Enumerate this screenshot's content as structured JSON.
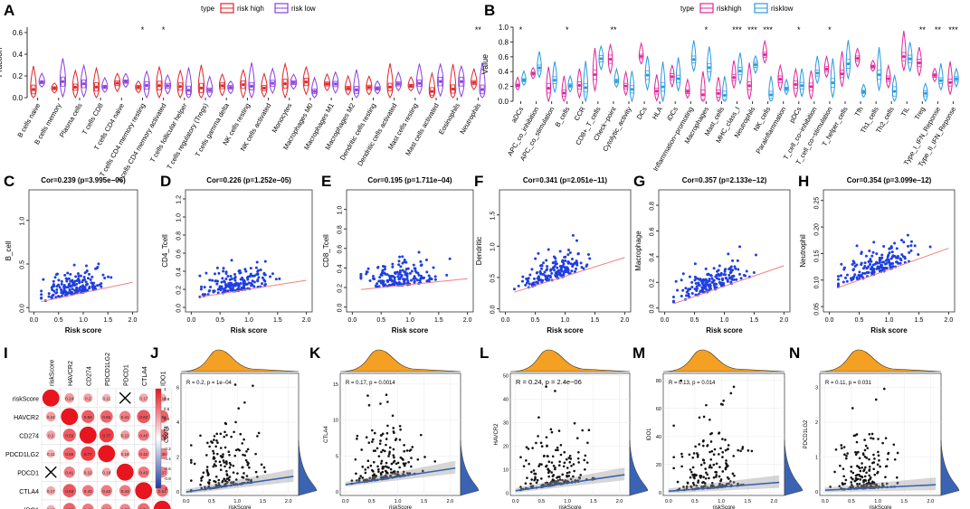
{
  "colors": {
    "risk_high_a": "#e0262b",
    "risk_low_a": "#8a3fe0",
    "risk_high_b": "#e0279a",
    "risk_low_b": "#2a9be0",
    "scatter_point": "#1f3fe0",
    "scatter_fit": "#f08080",
    "density_fill": "#f4a023",
    "density_side": "#3a63b3",
    "corr_red": "#e8141e",
    "corr_blue": "#1e3aa0"
  },
  "panels": {
    "A": {
      "letter": "A",
      "legend_title": "type",
      "legend_items": [
        "risk high",
        "risk low"
      ],
      "ylabel": "Fraction",
      "ylim": [
        0,
        0.65
      ],
      "yticks": [
        "0.0",
        "0.2",
        "0.4",
        "0.6"
      ],
      "categories": [
        "B cells naive",
        "B cells memory",
        "Plasma cells",
        "T cells CD8",
        "T cells CD4 naive",
        "T cells CD4 memory resting",
        "T cells CD4 memory activated",
        "T cells follicular helper",
        "T cells regulatory (Tregs)",
        "T cells gamma delta",
        "NK cells resting",
        "NK cells activated",
        "Monocytes",
        "Macrophages M0",
        "Macrophages M1",
        "Macrophages M2",
        "Dendritic cells resting",
        "Dendritic cells activated",
        "Mast cells resting",
        "Mast cells activated",
        "Eosinophils",
        "Neutrophils"
      ],
      "significance": [
        "",
        "",
        "",
        "",
        "",
        "*",
        "*",
        "",
        "",
        "",
        "",
        "",
        "",
        "",
        "",
        "",
        "",
        "",
        "",
        "",
        "",
        "**"
      ]
    },
    "B": {
      "letter": "B",
      "legend_title": "type",
      "legend_items": [
        "riskhigh",
        "risklow"
      ],
      "ylabel": "Value",
      "ylim": [
        0,
        1.0
      ],
      "yticks": [
        "0.0",
        "0.2",
        "0.4",
        "0.6",
        "0.8",
        "1.0"
      ],
      "categories": [
        "aDCs",
        "APC_co_inhibition",
        "APC_co_stimulation",
        "B_cells",
        "CCR",
        "CD8+_T_cells",
        "Check−point",
        "Cytolytic_activity",
        "DCs",
        "HLA",
        "iDCs",
        "Inflammation−promoting",
        "Macrophages",
        "Mast_cells",
        "MHC_class_I",
        "Neutrophils",
        "NK_cells",
        "Parainflammation",
        "pDCs",
        "T_cell_co−inhibition",
        "T_cell_co−stimulation",
        "T_helper_cells",
        "Tfh",
        "Th1_cells",
        "Th2_cells",
        "TIL",
        "Treg",
        "Type_I_IFN_Reponse",
        "Type_II_IFN_Reponse"
      ],
      "significance": [
        "*",
        "",
        "",
        "*",
        "",
        "",
        "**",
        "",
        "",
        "",
        "",
        "",
        "*",
        "",
        "***",
        "***",
        "***",
        "",
        "*",
        "",
        "*",
        "",
        "",
        "",
        "",
        "",
        "**",
        "**",
        "***"
      ]
    },
    "C": {
      "letter": "C",
      "title": "Cor=0.239 (p=3.995e−06)",
      "xlabel": "Risk score",
      "ylabel": "B_cell",
      "xticks": [
        "0.0",
        "0.5",
        "1.0",
        "1.5",
        "2.0"
      ],
      "yticks": [
        "0.0",
        "0.5",
        "1.0"
      ],
      "xlim": [
        -0.1,
        2.1
      ],
      "ylim": [
        -0.05,
        1.35
      ],
      "fit": [
        0.05,
        0.12
      ]
    },
    "D": {
      "letter": "D",
      "title": "Cor=0.226 (p=1.252e−05)",
      "xlabel": "Risk score",
      "ylabel": "CD4_Tcell",
      "xticks": [
        "0.0",
        "0.5",
        "1.0",
        "1.5",
        "2.0"
      ],
      "yticks": [
        "0.0",
        "0.2",
        "0.4",
        "0.6",
        "0.8",
        "1.0",
        "1.2"
      ],
      "xlim": [
        -0.1,
        2.1
      ],
      "ylim": [
        -0.05,
        1.3
      ],
      "fit": [
        0.1,
        0.1
      ]
    },
    "E": {
      "letter": "E",
      "title": "Cor=0.195 (p=1.711e−04)",
      "xlabel": "Risk score",
      "ylabel": "CD8_Tcell",
      "xticks": [
        "0.0",
        "0.5",
        "1.0",
        "1.5",
        "2.0"
      ],
      "yticks": [
        "0.0",
        "0.2",
        "0.4",
        "0.6",
        "0.8",
        "1.0"
      ],
      "xlim": [
        -0.1,
        2.1
      ],
      "ylim": [
        -0.05,
        1.2
      ],
      "fit": [
        0.17,
        0.06
      ]
    },
    "F": {
      "letter": "F",
      "title": "Cor=0.341 (p=2.051e−11)",
      "xlabel": "Risk score",
      "ylabel": "Dendritic",
      "xticks": [
        "0.0",
        "0.5",
        "1.0",
        "1.5",
        "2.0"
      ],
      "yticks": [
        "0.0",
        "0.5",
        "1.0",
        "1.5"
      ],
      "xlim": [
        -0.1,
        2.1
      ],
      "ylim": [
        -0.05,
        1.9
      ],
      "fit": [
        0.22,
        0.3
      ]
    },
    "G": {
      "letter": "G",
      "title": "Cor=0.357 (p=2.133e−12)",
      "xlabel": "Risk score",
      "ylabel": "Macrophage",
      "xticks": [
        "0.0",
        "0.5",
        "1.0",
        "1.5",
        "2.0"
      ],
      "yticks": [
        "0.0",
        "0.2",
        "0.4",
        "0.6",
        "0.8"
      ],
      "xlim": [
        -0.1,
        2.1
      ],
      "ylim": [
        -0.03,
        0.92
      ],
      "fit": [
        0.01,
        0.16
      ]
    },
    "H": {
      "letter": "H",
      "title": "Cor=0.354 (p=3.099e−12)",
      "xlabel": "Risk score",
      "ylabel": "Neutrophil",
      "xticks": [
        "0.0",
        "0.5",
        "1.0",
        "1.5",
        "2.0"
      ],
      "yticks": [
        "0.05",
        "0.10",
        "0.15",
        "0.20",
        "0.25"
      ],
      "xlim": [
        -0.1,
        2.1
      ],
      "ylim": [
        0.04,
        0.27
      ],
      "fit": [
        0.08,
        0.04
      ]
    },
    "I": {
      "letter": "I",
      "labels": [
        "riskScore",
        "HAVCR2",
        "CD274",
        "PDCD1LG2",
        "PDCD1",
        "CTLA4",
        "IDO1"
      ],
      "matrix": [
        [
          1,
          0.24,
          0.2,
          0.11,
          0.07,
          0.17,
          0.13
        ],
        [
          0.24,
          1,
          0.59,
          0.55,
          0.41,
          0.63,
          0.56
        ],
        [
          0.2,
          0.59,
          1,
          0.77,
          0.22,
          0.43,
          0.43
        ],
        [
          0.11,
          0.55,
          0.77,
          1,
          0.18,
          0.42,
          0.39
        ],
        [
          0.07,
          0.41,
          0.22,
          0.18,
          1,
          0.43,
          0.37
        ],
        [
          0.17,
          0.63,
          0.43,
          0.42,
          0.43,
          1,
          0.51
        ],
        [
          0.13,
          0.56,
          0.43,
          0.39,
          0.37,
          0.51,
          1
        ]
      ],
      "cross_pairs": [
        [
          0,
          4
        ],
        [
          4,
          0
        ]
      ],
      "colorbar_ticks": [
        "1",
        "0.8",
        "0.6",
        "0.4",
        "0.2",
        "0",
        "-0.2",
        "-0.4",
        "-0.6",
        "-0.8",
        "-1"
      ]
    },
    "J": {
      "letter": "J",
      "annot": "R = 0.2, p = 1e−04",
      "xlabel": "riskScore",
      "ylabel": "CD274",
      "xticks": [
        "0.0",
        "0.5",
        "1.0",
        "1.5",
        "2.0"
      ],
      "yticks": [
        "0",
        "2",
        "4",
        "6"
      ],
      "xlim": [
        -0.1,
        2.2
      ],
      "ylim": [
        -0.2,
        6.8
      ],
      "fit": [
        0.0,
        0.85
      ]
    },
    "K": {
      "letter": "K",
      "annot": "R = 0.17, p = 0.0014",
      "xlabel": "riskScore",
      "ylabel": "CTLA4",
      "xticks": [
        "0.0",
        "0.5",
        "1.0",
        "1.5",
        "2.0"
      ],
      "yticks": [
        "0",
        "5",
        "10",
        "15"
      ],
      "xlim": [
        -0.1,
        2.2
      ],
      "ylim": [
        -0.5,
        16.5
      ],
      "fit": [
        1.0,
        2.2
      ]
    },
    "L": {
      "letter": "L",
      "annot": "R = 0.24, p = 2.4e−06",
      "xlabel": "riskScore",
      "ylabel": "HAVCR2",
      "xticks": [
        "0.0",
        "0.5",
        "1.0",
        "1.5",
        "2.0"
      ],
      "yticks": [
        "0",
        "10",
        "20",
        "30",
        "40",
        "50"
      ],
      "xlim": [
        -0.1,
        2.2
      ],
      "ylim": [
        -1,
        51
      ],
      "fit": [
        1.0,
        6.5
      ]
    },
    "M": {
      "letter": "M",
      "annot": "R = 0.13, p = 0.014",
      "xlabel": "riskScore",
      "ylabel": "IDO1",
      "xticks": [
        "0.0",
        "0.5",
        "1.0",
        "1.5",
        "2.0"
      ],
      "yticks": [
        "0",
        "20",
        "40",
        "60",
        "80"
      ],
      "xlim": [
        -0.1,
        2.2
      ],
      "ylim": [
        -2,
        85
      ],
      "fit": [
        1.0,
        6.0
      ]
    },
    "N": {
      "letter": "N",
      "annot": "R = 0.11, p = 0.031",
      "xlabel": "riskScore",
      "ylabel": "PDCD1LG2",
      "xticks": [
        "0.0",
        "0.5",
        "1.0",
        "1.5",
        "2.0"
      ],
      "yticks": [
        "0",
        "1",
        "2",
        "3"
      ],
      "xlim": [
        -0.1,
        2.2
      ],
      "ylim": [
        -0.1,
        3.4
      ],
      "fit": [
        0.05,
        0.15
      ]
    }
  }
}
